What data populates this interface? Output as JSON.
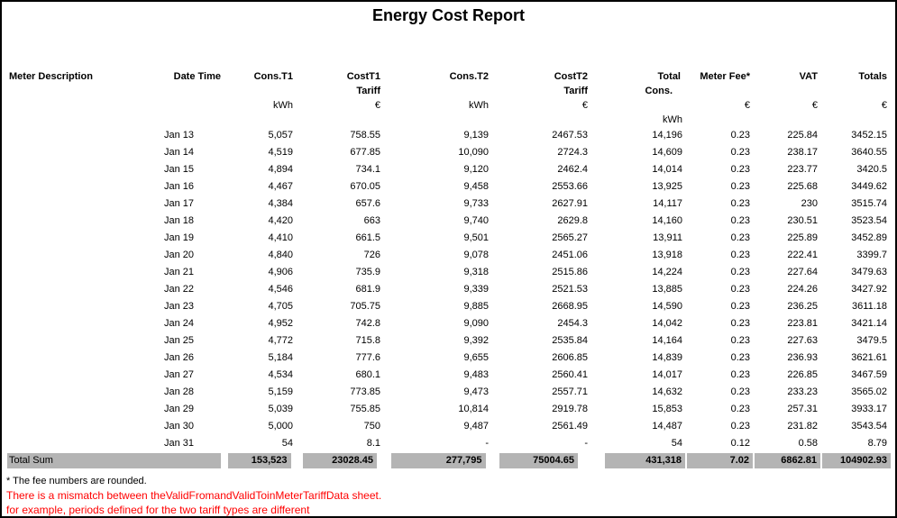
{
  "report": {
    "title": "Energy Cost Report"
  },
  "table": {
    "columns": [
      {
        "key": "meter_description",
        "label": "Meter Description",
        "sub": "",
        "unit": "",
        "unit2": ""
      },
      {
        "key": "date_time",
        "label": "Date Time",
        "sub": "",
        "unit": "",
        "unit2": ""
      },
      {
        "key": "cons_t1",
        "label": "Cons.T1",
        "sub": "",
        "unit": "kWh",
        "unit2": ""
      },
      {
        "key": "cost_t1_tariff",
        "label": "CostT1",
        "sub": "Tariff",
        "unit": "€",
        "unit2": ""
      },
      {
        "key": "cons_t2",
        "label": "Cons.T2",
        "sub": "",
        "unit": "kWh",
        "unit2": ""
      },
      {
        "key": "cost_t2_tariff",
        "label": "CostT2",
        "sub": "Tariff",
        "unit": "€",
        "unit2": ""
      },
      {
        "key": "total_cons",
        "label": "Total",
        "sub": "Cons.",
        "unit": "",
        "unit2": "kWh"
      },
      {
        "key": "meter_fee",
        "label": "Meter Fee*",
        "sub": "",
        "unit": "€",
        "unit2": ""
      },
      {
        "key": "vat",
        "label": "VAT",
        "sub": "",
        "unit": "€",
        "unit2": ""
      },
      {
        "key": "totals",
        "label": "Totals",
        "sub": "",
        "unit": "€",
        "unit2": ""
      }
    ],
    "rows": [
      [
        "",
        "Jan 13",
        "5,057",
        "758.55",
        "9,139",
        "2467.53",
        "14,196",
        "0.23",
        "225.84",
        "3452.15"
      ],
      [
        "",
        "Jan 14",
        "4,519",
        "677.85",
        "10,090",
        "2724.3",
        "14,609",
        "0.23",
        "238.17",
        "3640.55"
      ],
      [
        "",
        "Jan 15",
        "4,894",
        "734.1",
        "9,120",
        "2462.4",
        "14,014",
        "0.23",
        "223.77",
        "3420.5"
      ],
      [
        "",
        "Jan 16",
        "4,467",
        "670.05",
        "9,458",
        "2553.66",
        "13,925",
        "0.23",
        "225.68",
        "3449.62"
      ],
      [
        "",
        "Jan 17",
        "4,384",
        "657.6",
        "9,733",
        "2627.91",
        "14,117",
        "0.23",
        "230",
        "3515.74"
      ],
      [
        "",
        "Jan 18",
        "4,420",
        "663",
        "9,740",
        "2629.8",
        "14,160",
        "0.23",
        "230.51",
        "3523.54"
      ],
      [
        "",
        "Jan 19",
        "4,410",
        "661.5",
        "9,501",
        "2565.27",
        "13,911",
        "0.23",
        "225.89",
        "3452.89"
      ],
      [
        "",
        "Jan 20",
        "4,840",
        "726",
        "9,078",
        "2451.06",
        "13,918",
        "0.23",
        "222.41",
        "3399.7"
      ],
      [
        "",
        "Jan 21",
        "4,906",
        "735.9",
        "9,318",
        "2515.86",
        "14,224",
        "0.23",
        "227.64",
        "3479.63"
      ],
      [
        "",
        "Jan 22",
        "4,546",
        "681.9",
        "9,339",
        "2521.53",
        "13,885",
        "0.23",
        "224.26",
        "3427.92"
      ],
      [
        "",
        "Jan 23",
        "4,705",
        "705.75",
        "9,885",
        "2668.95",
        "14,590",
        "0.23",
        "236.25",
        "3611.18"
      ],
      [
        "",
        "Jan 24",
        "4,952",
        "742.8",
        "9,090",
        "2454.3",
        "14,042",
        "0.23",
        "223.81",
        "3421.14"
      ],
      [
        "",
        "Jan 25",
        "4,772",
        "715.8",
        "9,392",
        "2535.84",
        "14,164",
        "0.23",
        "227.63",
        "3479.5"
      ],
      [
        "",
        "Jan 26",
        "5,184",
        "777.6",
        "9,655",
        "2606.85",
        "14,839",
        "0.23",
        "236.93",
        "3621.61"
      ],
      [
        "",
        "Jan 27",
        "4,534",
        "680.1",
        "9,483",
        "2560.41",
        "14,017",
        "0.23",
        "226.85",
        "3467.59"
      ],
      [
        "",
        "Jan 28",
        "5,159",
        "773.85",
        "9,473",
        "2557.71",
        "14,632",
        "0.23",
        "233.23",
        "3565.02"
      ],
      [
        "",
        "Jan 29",
        "5,039",
        "755.85",
        "10,814",
        "2919.78",
        "15,853",
        "0.23",
        "257.31",
        "3933.17"
      ],
      [
        "",
        "Jan 30",
        "5,000",
        "750",
        "9,487",
        "2561.49",
        "14,487",
        "0.23",
        "231.82",
        "3543.54"
      ],
      [
        "",
        "Jan 31",
        "54",
        "8.1",
        "-",
        "-",
        "54",
        "0.12",
        "0.58",
        "8.79"
      ]
    ],
    "total": {
      "label": "Total Sum",
      "values": [
        "153,523",
        "23028.45",
        "277,795",
        "75004.65",
        "431,318",
        "7.02",
        "6862.81",
        "104902.93"
      ]
    }
  },
  "footnotes": {
    "note": "* The fee numbers are rounded.",
    "warning1": "There is a mismatch between theValidFromandValidToinMeterTariffData sheet.",
    "warning2": "for example, periods defined for the two tariff types are different"
  },
  "colors": {
    "total_row_bg": "#b4b4b4",
    "warning_text": "#ff0000"
  }
}
